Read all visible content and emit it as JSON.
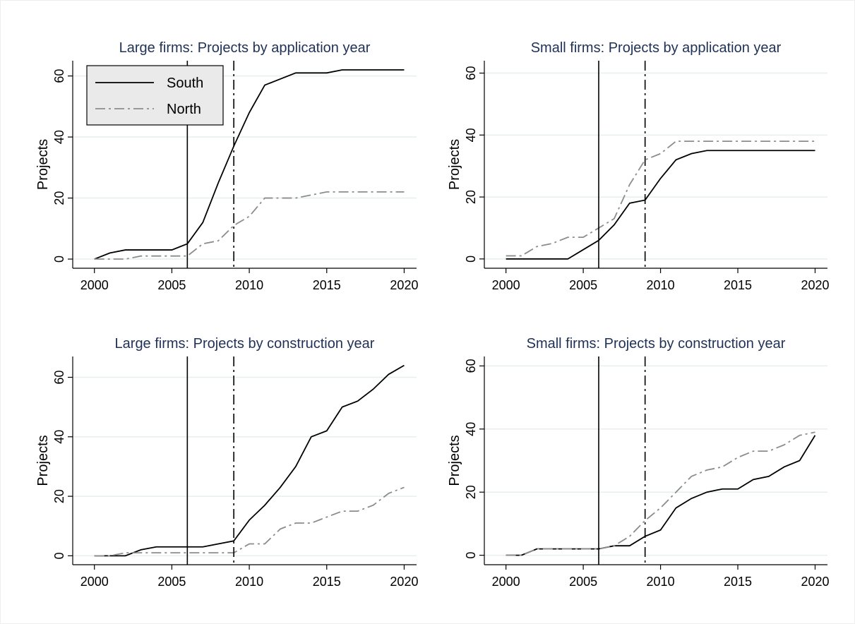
{
  "chart_data": [
    {
      "type": "line",
      "title": "Large firms: Projects by application year",
      "ylabel": "Projects",
      "x": [
        2000,
        2001,
        2002,
        2003,
        2004,
        2005,
        2006,
        2007,
        2008,
        2009,
        2010,
        2011,
        2012,
        2013,
        2014,
        2015,
        2016,
        2017,
        2018,
        2019,
        2020
      ],
      "series": [
        {
          "name": "South",
          "color": "#000000",
          "dash": "solid",
          "values": [
            0,
            2,
            3,
            3,
            3,
            3,
            5,
            12,
            25,
            37,
            48,
            57,
            59,
            61,
            61,
            61,
            62,
            62,
            62,
            62,
            62
          ]
        },
        {
          "name": "North",
          "color": "#8c8c8c",
          "dash": "dashdot",
          "values": [
            0,
            0,
            0,
            1,
            1,
            1,
            1,
            5,
            6,
            11,
            14,
            20,
            20,
            20,
            21,
            22,
            22,
            22,
            22,
            22,
            22
          ]
        }
      ],
      "xlim": [
        1998.6,
        2020.8
      ],
      "ylim": [
        -3,
        65
      ],
      "xticks": [
        2000,
        2005,
        2010,
        2015,
        2020
      ],
      "yticks": [
        0,
        20,
        40,
        60
      ],
      "grid": true,
      "reference_lines": [
        {
          "x": 2006,
          "dash": "solid"
        },
        {
          "x": 2009,
          "dash": "dashdot"
        }
      ],
      "legend": "upper left"
    },
    {
      "type": "line",
      "title": "Small firms: Projects by application year",
      "ylabel": "Projects",
      "x": [
        2000,
        2001,
        2002,
        2003,
        2004,
        2005,
        2006,
        2007,
        2008,
        2009,
        2010,
        2011,
        2012,
        2013,
        2014,
        2015,
        2016,
        2017,
        2018,
        2019,
        2020
      ],
      "series": [
        {
          "color": "#000000",
          "dash": "solid",
          "values": [
            0,
            0,
            0,
            0,
            0,
            3,
            6,
            11,
            18,
            19,
            26,
            32,
            34,
            35,
            35,
            35,
            35,
            35,
            35,
            35,
            35
          ]
        },
        {
          "color": "#8c8c8c",
          "dash": "dashdot",
          "values": [
            1,
            1,
            4,
            5,
            7,
            7,
            10,
            13,
            24,
            32,
            34,
            38,
            38,
            38,
            38,
            38,
            38,
            38,
            38,
            38,
            38
          ]
        }
      ],
      "xlim": [
        1998.6,
        2020.8
      ],
      "ylim": [
        -3,
        64
      ],
      "xticks": [
        2000,
        2005,
        2010,
        2015,
        2020
      ],
      "yticks": [
        0,
        20,
        40,
        60
      ],
      "grid": true,
      "reference_lines": [
        {
          "x": 2006,
          "dash": "solid"
        },
        {
          "x": 2009,
          "dash": "dashdot"
        }
      ]
    },
    {
      "type": "line",
      "title": "Large firms: Projects by construction year",
      "ylabel": "Projects",
      "x": [
        2000,
        2001,
        2002,
        2003,
        2004,
        2005,
        2006,
        2007,
        2008,
        2009,
        2010,
        2011,
        2012,
        2013,
        2014,
        2015,
        2016,
        2017,
        2018,
        2019,
        2020
      ],
      "series": [
        {
          "color": "#000000",
          "dash": "solid",
          "values": [
            0,
            0,
            0,
            2,
            3,
            3,
            3,
            3,
            4,
            5,
            12,
            17,
            23,
            30,
            40,
            42,
            50,
            52,
            56,
            61,
            64
          ]
        },
        {
          "color": "#8c8c8c",
          "dash": "dashdot",
          "values": [
            0,
            0,
            1,
            1,
            1,
            1,
            1,
            1,
            1,
            1,
            4,
            4,
            9,
            11,
            11,
            13,
            15,
            15,
            17,
            21,
            23
          ]
        }
      ],
      "xlim": [
        1998.6,
        2020.8
      ],
      "ylim": [
        -3,
        67
      ],
      "xticks": [
        2000,
        2005,
        2010,
        2015,
        2020
      ],
      "yticks": [
        0,
        20,
        40,
        60
      ],
      "grid": true,
      "reference_lines": [
        {
          "x": 2006,
          "dash": "solid"
        },
        {
          "x": 2009,
          "dash": "dashdot"
        }
      ]
    },
    {
      "type": "line",
      "title": "Small firms: Projects by construction year",
      "ylabel": "Projects",
      "x": [
        2000,
        2001,
        2002,
        2003,
        2004,
        2005,
        2006,
        2007,
        2008,
        2009,
        2010,
        2011,
        2012,
        2013,
        2014,
        2015,
        2016,
        2017,
        2018,
        2019,
        2020
      ],
      "series": [
        {
          "color": "#000000",
          "dash": "solid",
          "values": [
            0,
            0,
            2,
            2,
            2,
            2,
            2,
            3,
            3,
            6,
            8,
            15,
            18,
            20,
            21,
            21,
            24,
            25,
            28,
            30,
            38
          ]
        },
        {
          "color": "#8c8c8c",
          "dash": "dashdot",
          "values": [
            0,
            0,
            2,
            2,
            2,
            2,
            2,
            3,
            6,
            11,
            15,
            20,
            25,
            27,
            28,
            31,
            33,
            33,
            35,
            38,
            39
          ]
        }
      ],
      "xlim": [
        1998.6,
        2020.8
      ],
      "ylim": [
        -3,
        63
      ],
      "xticks": [
        2000,
        2005,
        2010,
        2015,
        2020
      ],
      "yticks": [
        0,
        20,
        40,
        60
      ],
      "grid": true,
      "reference_lines": [
        {
          "x": 2006,
          "dash": "solid"
        },
        {
          "x": 2009,
          "dash": "dashdot"
        }
      ]
    }
  ]
}
